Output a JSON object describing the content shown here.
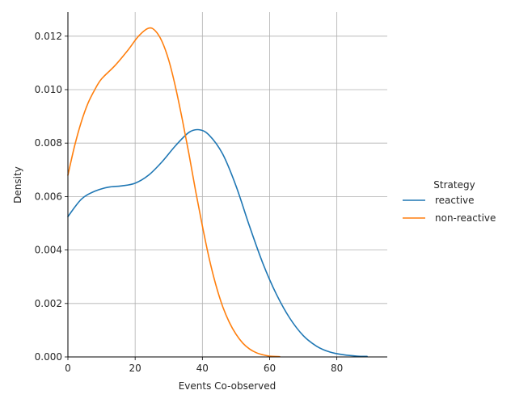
{
  "chart_data": {
    "type": "line",
    "title": "",
    "xlabel": "Events Co-observed",
    "ylabel": "Density",
    "xlim": [
      0,
      95
    ],
    "ylim": [
      0,
      0.0129
    ],
    "x_ticks": [
      0,
      20,
      40,
      60,
      80
    ],
    "y_ticks": [
      0.0,
      0.002,
      0.004,
      0.006,
      0.008,
      0.01,
      0.012
    ],
    "x_tick_labels": [
      "0",
      "20",
      "40",
      "60",
      "80"
    ],
    "y_tick_labels": [
      "0.000",
      "0.002",
      "0.004",
      "0.006",
      "0.008",
      "0.010",
      "0.012"
    ],
    "grid": true,
    "legend": {
      "title": "Strategy",
      "placement": "right"
    },
    "series": [
      {
        "name": "reactive",
        "color": "#1f77b4",
        "x": [
          0,
          4,
          8,
          12,
          16,
          20,
          24,
          28,
          32,
          36,
          39,
          42,
          46,
          50,
          54,
          58,
          62,
          66,
          70,
          74,
          78,
          82,
          86,
          89
        ],
        "y": [
          0.00525,
          0.0059,
          0.0062,
          0.00635,
          0.0064,
          0.0065,
          0.0068,
          0.0073,
          0.0079,
          0.0084,
          0.0085,
          0.0083,
          0.0076,
          0.0064,
          0.0049,
          0.0035,
          0.00235,
          0.00145,
          0.0008,
          0.0004,
          0.00018,
          8e-05,
          3e-05,
          2e-05
        ]
      },
      {
        "name": "non-reactive",
        "color": "#ff7f0e",
        "x": [
          0,
          2,
          4,
          6,
          8,
          10,
          14,
          18,
          21,
          24,
          26,
          28,
          30,
          32,
          34,
          36,
          38,
          40,
          42,
          44,
          46,
          48,
          50,
          52,
          54,
          56,
          58,
          60,
          63
        ],
        "y": [
          0.0068,
          0.0079,
          0.0088,
          0.0095,
          0.01,
          0.0104,
          0.0109,
          0.0115,
          0.012,
          0.0123,
          0.0122,
          0.0118,
          0.0111,
          0.0101,
          0.0089,
          0.0076,
          0.0062,
          0.0049,
          0.0037,
          0.0027,
          0.0019,
          0.0013,
          0.00085,
          0.00052,
          0.0003,
          0.00016,
          8e-05,
          3e-05,
          1e-05
        ]
      }
    ]
  }
}
